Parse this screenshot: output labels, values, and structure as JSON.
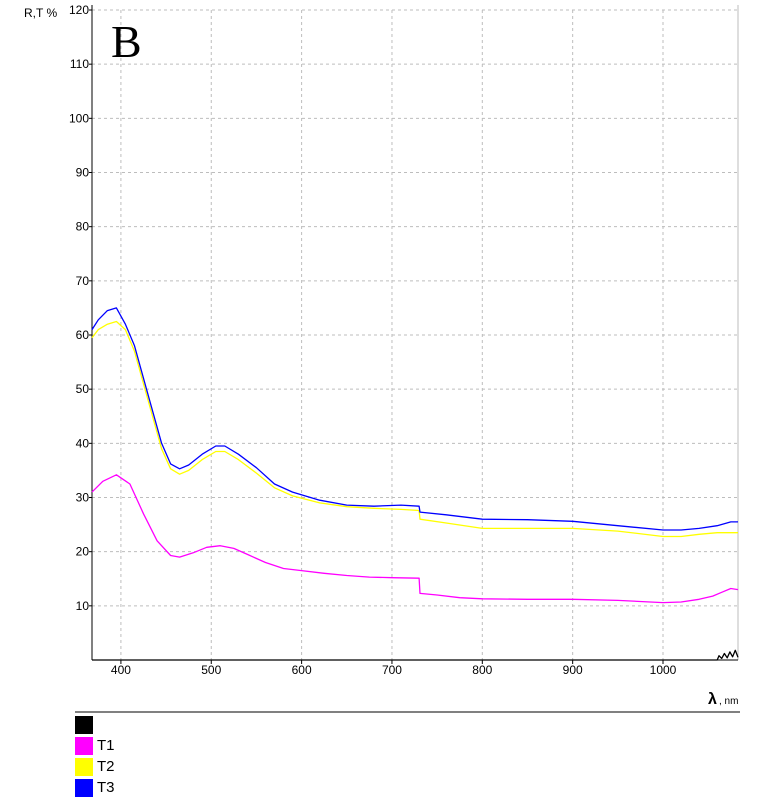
{
  "panel_label": "B",
  "chart_data": {
    "type": "line",
    "ylabel": "R,T %",
    "xlabel_symbol": "λ",
    "xlabel_unit": ", nm",
    "xlim": [
      368,
      1083
    ],
    "ylim": [
      0,
      120
    ],
    "x_ticks": [
      400,
      500,
      600,
      700,
      800,
      900,
      1000
    ],
    "y_ticks": [
      10,
      20,
      30,
      40,
      50,
      60,
      70,
      80,
      90,
      100,
      110,
      120
    ],
    "grid": true,
    "legend_position": "bottom-left",
    "series": [
      {
        "name": "",
        "color": "#000000",
        "points": [
          [
            368,
            0
          ],
          [
            1060,
            0
          ],
          [
            1062,
            0.8
          ],
          [
            1065,
            0.3
          ],
          [
            1068,
            1.2
          ],
          [
            1071,
            0.4
          ],
          [
            1074,
            1.5
          ],
          [
            1077,
            0.6
          ],
          [
            1080,
            1.8
          ],
          [
            1083,
            0.5
          ]
        ]
      },
      {
        "name": "T1",
        "color": "#ff00ff",
        "points": [
          [
            368,
            31
          ],
          [
            380,
            33
          ],
          [
            395,
            34.2
          ],
          [
            410,
            32.5
          ],
          [
            425,
            27
          ],
          [
            440,
            22
          ],
          [
            455,
            19.3
          ],
          [
            465,
            19
          ],
          [
            480,
            19.8
          ],
          [
            495,
            20.8
          ],
          [
            510,
            21.1
          ],
          [
            525,
            20.6
          ],
          [
            540,
            19.5
          ],
          [
            560,
            18
          ],
          [
            580,
            16.9
          ],
          [
            600,
            16.5
          ],
          [
            625,
            16
          ],
          [
            650,
            15.6
          ],
          [
            675,
            15.3
          ],
          [
            700,
            15.2
          ],
          [
            730,
            15.1
          ],
          [
            731,
            12.3
          ],
          [
            750,
            12
          ],
          [
            775,
            11.5
          ],
          [
            800,
            11.3
          ],
          [
            850,
            11.2
          ],
          [
            900,
            11.2
          ],
          [
            950,
            11
          ],
          [
            1000,
            10.6
          ],
          [
            1020,
            10.7
          ],
          [
            1040,
            11.2
          ],
          [
            1055,
            11.8
          ],
          [
            1065,
            12.5
          ],
          [
            1075,
            13.2
          ],
          [
            1083,
            13
          ]
        ]
      },
      {
        "name": "T2",
        "color": "#ffff00",
        "points": [
          [
            368,
            59.5
          ],
          [
            375,
            61
          ],
          [
            385,
            62
          ],
          [
            395,
            62.5
          ],
          [
            405,
            61
          ],
          [
            415,
            57
          ],
          [
            430,
            48
          ],
          [
            445,
            39
          ],
          [
            455,
            35.3
          ],
          [
            465,
            34.3
          ],
          [
            475,
            35
          ],
          [
            490,
            37
          ],
          [
            505,
            38.5
          ],
          [
            515,
            38.5
          ],
          [
            530,
            37
          ],
          [
            550,
            34.5
          ],
          [
            570,
            31.8
          ],
          [
            590,
            30.3
          ],
          [
            620,
            29
          ],
          [
            650,
            28.3
          ],
          [
            680,
            28
          ],
          [
            710,
            27.8
          ],
          [
            730,
            27.6
          ],
          [
            731,
            26
          ],
          [
            760,
            25.3
          ],
          [
            800,
            24.3
          ],
          [
            850,
            24.3
          ],
          [
            900,
            24.3
          ],
          [
            950,
            23.8
          ],
          [
            1000,
            22.8
          ],
          [
            1020,
            22.8
          ],
          [
            1040,
            23.2
          ],
          [
            1060,
            23.5
          ],
          [
            1083,
            23.5
          ]
        ]
      },
      {
        "name": "T3",
        "color": "#0000ff",
        "points": [
          [
            368,
            61
          ],
          [
            375,
            62.8
          ],
          [
            385,
            64.5
          ],
          [
            395,
            65
          ],
          [
            405,
            62
          ],
          [
            415,
            58
          ],
          [
            430,
            49
          ],
          [
            445,
            40
          ],
          [
            455,
            36.2
          ],
          [
            465,
            35.3
          ],
          [
            475,
            36
          ],
          [
            490,
            38
          ],
          [
            505,
            39.5
          ],
          [
            515,
            39.5
          ],
          [
            530,
            38
          ],
          [
            550,
            35.5
          ],
          [
            570,
            32.5
          ],
          [
            590,
            31
          ],
          [
            620,
            29.5
          ],
          [
            650,
            28.6
          ],
          [
            680,
            28.4
          ],
          [
            710,
            28.6
          ],
          [
            730,
            28.4
          ],
          [
            731,
            27.3
          ],
          [
            760,
            26.8
          ],
          [
            800,
            26
          ],
          [
            850,
            25.9
          ],
          [
            900,
            25.6
          ],
          [
            950,
            24.8
          ],
          [
            1000,
            24
          ],
          [
            1020,
            24
          ],
          [
            1040,
            24.3
          ],
          [
            1060,
            24.8
          ],
          [
            1075,
            25.5
          ],
          [
            1083,
            25.5
          ]
        ]
      }
    ]
  }
}
